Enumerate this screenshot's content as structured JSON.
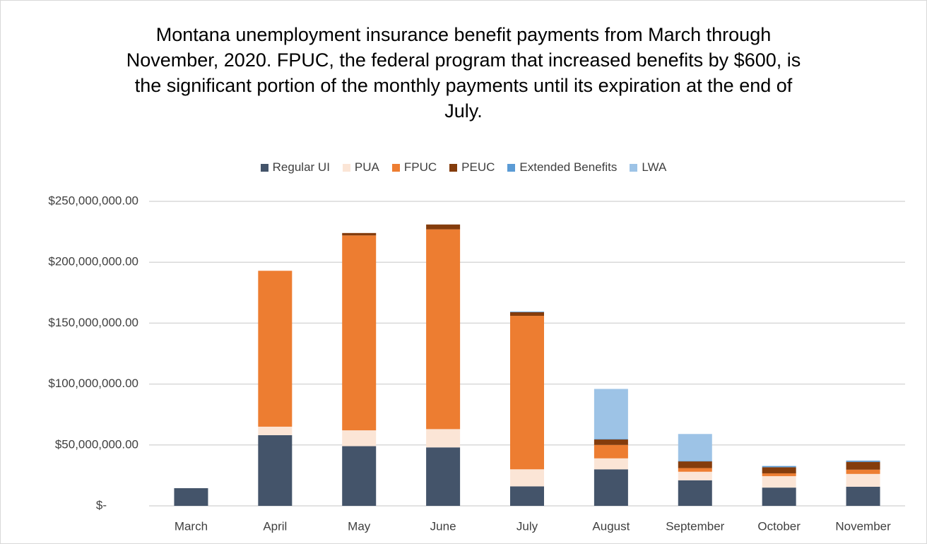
{
  "chart_data": {
    "type": "stacked_bar",
    "title": "Montana unemployment insurance benefit payments from March through November, 2020. FPUC, the federal program that increased benefits by $600, is the significant portion of the monthly payments until its expiration at the end of July.",
    "categories": [
      "March",
      "April",
      "May",
      "June",
      "July",
      "August",
      "September",
      "October",
      "November"
    ],
    "series": [
      {
        "name": "Regular UI",
        "color": "#44546a",
        "values": [
          14500000,
          58000000,
          49000000,
          48000000,
          16000000,
          30000000,
          21000000,
          15000000,
          15700000
        ]
      },
      {
        "name": "PUA",
        "color": "#fbe5d6",
        "values": [
          0,
          7000000,
          13000000,
          15000000,
          14000000,
          9000000,
          7000000,
          9400000,
          10500000
        ]
      },
      {
        "name": "FPUC",
        "color": "#ed7d31",
        "values": [
          0,
          128000000,
          160000000,
          164000000,
          126000000,
          11000000,
          3000000,
          2300000,
          3500000
        ]
      },
      {
        "name": "PEUC",
        "color": "#843c0c",
        "values": [
          0,
          0,
          2000000,
          4000000,
          3000000,
          4500000,
          5500000,
          5000000,
          6400000
        ]
      },
      {
        "name": "Extended Benefits",
        "color": "#5b9bd5",
        "values": [
          0,
          0,
          0,
          0,
          500000,
          500000,
          500000,
          1000000,
          1000000
        ]
      },
      {
        "name": "LWA",
        "color": "#9dc3e6",
        "values": [
          0,
          0,
          0,
          0,
          0,
          41000000,
          22000000,
          0,
          0
        ]
      }
    ],
    "ylim": [
      0,
      250000000
    ],
    "yticks": [
      {
        "value": 0,
        "label": "$-"
      },
      {
        "value": 50000000,
        "label": "$50,000,000.00"
      },
      {
        "value": 100000000,
        "label": "$100,000,000.00"
      },
      {
        "value": 150000000,
        "label": "$150,000,000.00"
      },
      {
        "value": 200000000,
        "label": "$200,000,000.00"
      },
      {
        "value": 250000000,
        "label": "$250,000,000.00"
      }
    ],
    "grid": true,
    "legend": "top"
  }
}
